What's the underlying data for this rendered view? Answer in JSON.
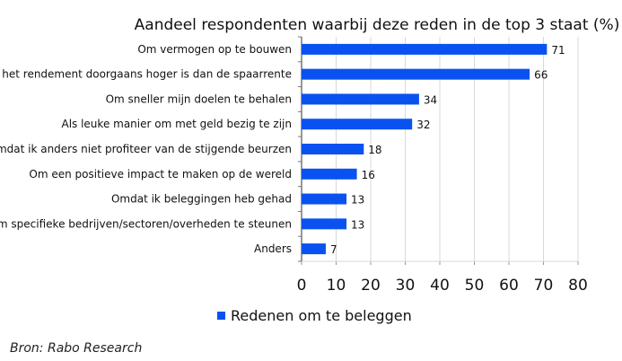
{
  "chart_data": {
    "type": "bar",
    "orientation": "horizontal",
    "title": "Aandeel respondenten waarbij deze reden in de top 3 staat (%)",
    "categories": [
      "Om vermogen op te bouwen",
      "Omdat het rendement doorgaans hoger is dan de spaarrente",
      "Om sneller mijn doelen te behalen",
      "Als leuke manier om met geld bezig te zijn",
      "Omdat ik anders niet profiteer van de stijgende beurzen",
      "Om een positieve impact te maken op de wereld",
      "Omdat ik beleggingen heb gehad",
      "Om specifieke bedrijven/sectoren/overheden te steunen",
      "Anders"
    ],
    "series": [
      {
        "name": "Redenen om te beleggen",
        "values": [
          71,
          66,
          34,
          32,
          18,
          16,
          13,
          13,
          7
        ],
        "color": "#0a52f0"
      }
    ],
    "xlim": [
      0,
      80
    ],
    "xticks": [
      "0",
      "10",
      "20",
      "30",
      "40",
      "50",
      "60",
      "70",
      "80"
    ],
    "grid": true,
    "legend_position": "bottom"
  },
  "source": "Bron: Rabo Research"
}
